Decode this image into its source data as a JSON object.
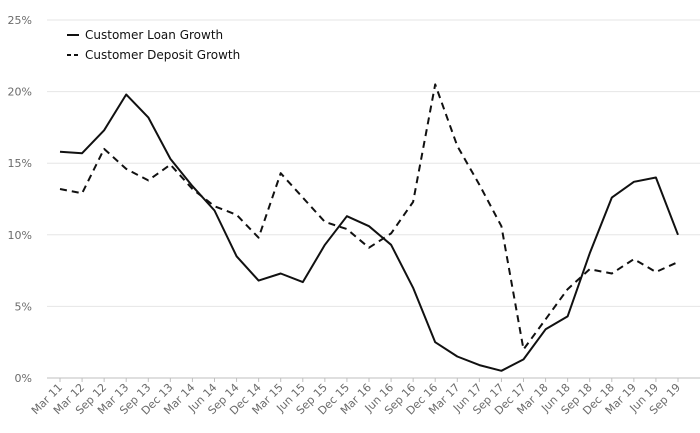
{
  "chart_data": {
    "type": "line",
    "title": "",
    "xlabel": "",
    "ylabel": "",
    "ylim": [
      0,
      25
    ],
    "y_ticks": [
      "0%",
      "5%",
      "10%",
      "15%",
      "20%",
      "25%"
    ],
    "y_tick_values": [
      0,
      5,
      10,
      15,
      20,
      25
    ],
    "categories": [
      "Mar 11",
      "Mar 12",
      "Sep 12",
      "Mar 13",
      "Sep 13",
      "Dec 13",
      "Mar 14",
      "Jun 14",
      "Sep 14",
      "Dec 14",
      "Mar 15",
      "Jun 15",
      "Sep 15",
      "Dec 15",
      "Mar 16",
      "Jun 16",
      "Sep 16",
      "Dec 16",
      "Mar 17",
      "Jun 17",
      "Sep 17",
      "Dec 17",
      "Mar 18",
      "Jun 18",
      "Sep 18",
      "Dec 18",
      "Mar 19",
      "Jun 19",
      "Sep 19"
    ],
    "grid": true,
    "legend_position": "top-left",
    "series": [
      {
        "name": "Customer Loan Growth",
        "style": "solid",
        "color": "#111111",
        "values": [
          15.8,
          15.7,
          17.3,
          19.8,
          18.2,
          15.3,
          13.4,
          11.7,
          8.5,
          6.8,
          7.3,
          6.7,
          9.3,
          11.3,
          10.6,
          9.3,
          6.3,
          2.5,
          1.5,
          0.9,
          0.5,
          1.3,
          3.4,
          4.3,
          8.7,
          12.6,
          13.7,
          14.0,
          10.0
        ]
      },
      {
        "name": "Customer Deposit Growth",
        "style": "dashed",
        "color": "#111111",
        "values": [
          13.2,
          12.9,
          16.0,
          14.6,
          13.8,
          14.9,
          13.2,
          12.0,
          11.4,
          9.8,
          14.3,
          12.6,
          10.9,
          10.4,
          9.1,
          10.1,
          12.3,
          20.5,
          16.2,
          13.5,
          10.6,
          2.0,
          4.1,
          6.2,
          7.6,
          7.3,
          8.3,
          7.4,
          8.1
        ]
      }
    ]
  }
}
